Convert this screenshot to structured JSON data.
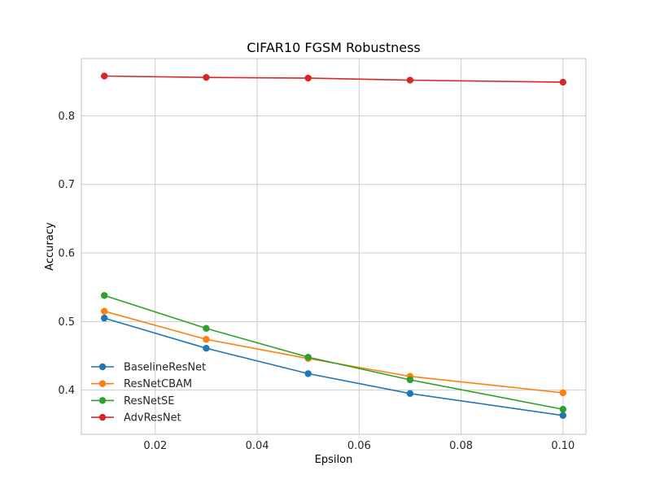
{
  "chart_data": {
    "type": "line",
    "title": "CIFAR10 FGSM Robustness",
    "xlabel": "Epsilon",
    "ylabel": "Accuracy",
    "x": [
      0.01,
      0.03,
      0.05,
      0.07,
      0.1
    ],
    "xlim": [
      0.0055,
      0.1045
    ],
    "ylim": [
      0.3355,
      0.8835
    ],
    "xticks": [
      0.02,
      0.04,
      0.06,
      0.08,
      0.1
    ],
    "xtick_labels": [
      "0.02",
      "0.04",
      "0.06",
      "0.08",
      "0.10"
    ],
    "yticks": [
      0.4,
      0.5,
      0.6,
      0.7,
      0.8
    ],
    "ytick_labels": [
      "0.4",
      "0.5",
      "0.6",
      "0.7",
      "0.8"
    ],
    "grid": true,
    "legend_position": "lower-left",
    "series": [
      {
        "name": "BaselineResNet",
        "color": "#1f77b4",
        "values": [
          0.505,
          0.461,
          0.424,
          0.395,
          0.363
        ]
      },
      {
        "name": "ResNetCBAM",
        "color": "#ff7f0e",
        "values": [
          0.515,
          0.474,
          0.446,
          0.42,
          0.396
        ]
      },
      {
        "name": "ResNetSE",
        "color": "#2ca02c",
        "values": [
          0.538,
          0.49,
          0.448,
          0.415,
          0.372
        ]
      },
      {
        "name": "AdvResNet",
        "color": "#d62728",
        "values": [
          0.858,
          0.856,
          0.855,
          0.852,
          0.849
        ]
      }
    ]
  }
}
